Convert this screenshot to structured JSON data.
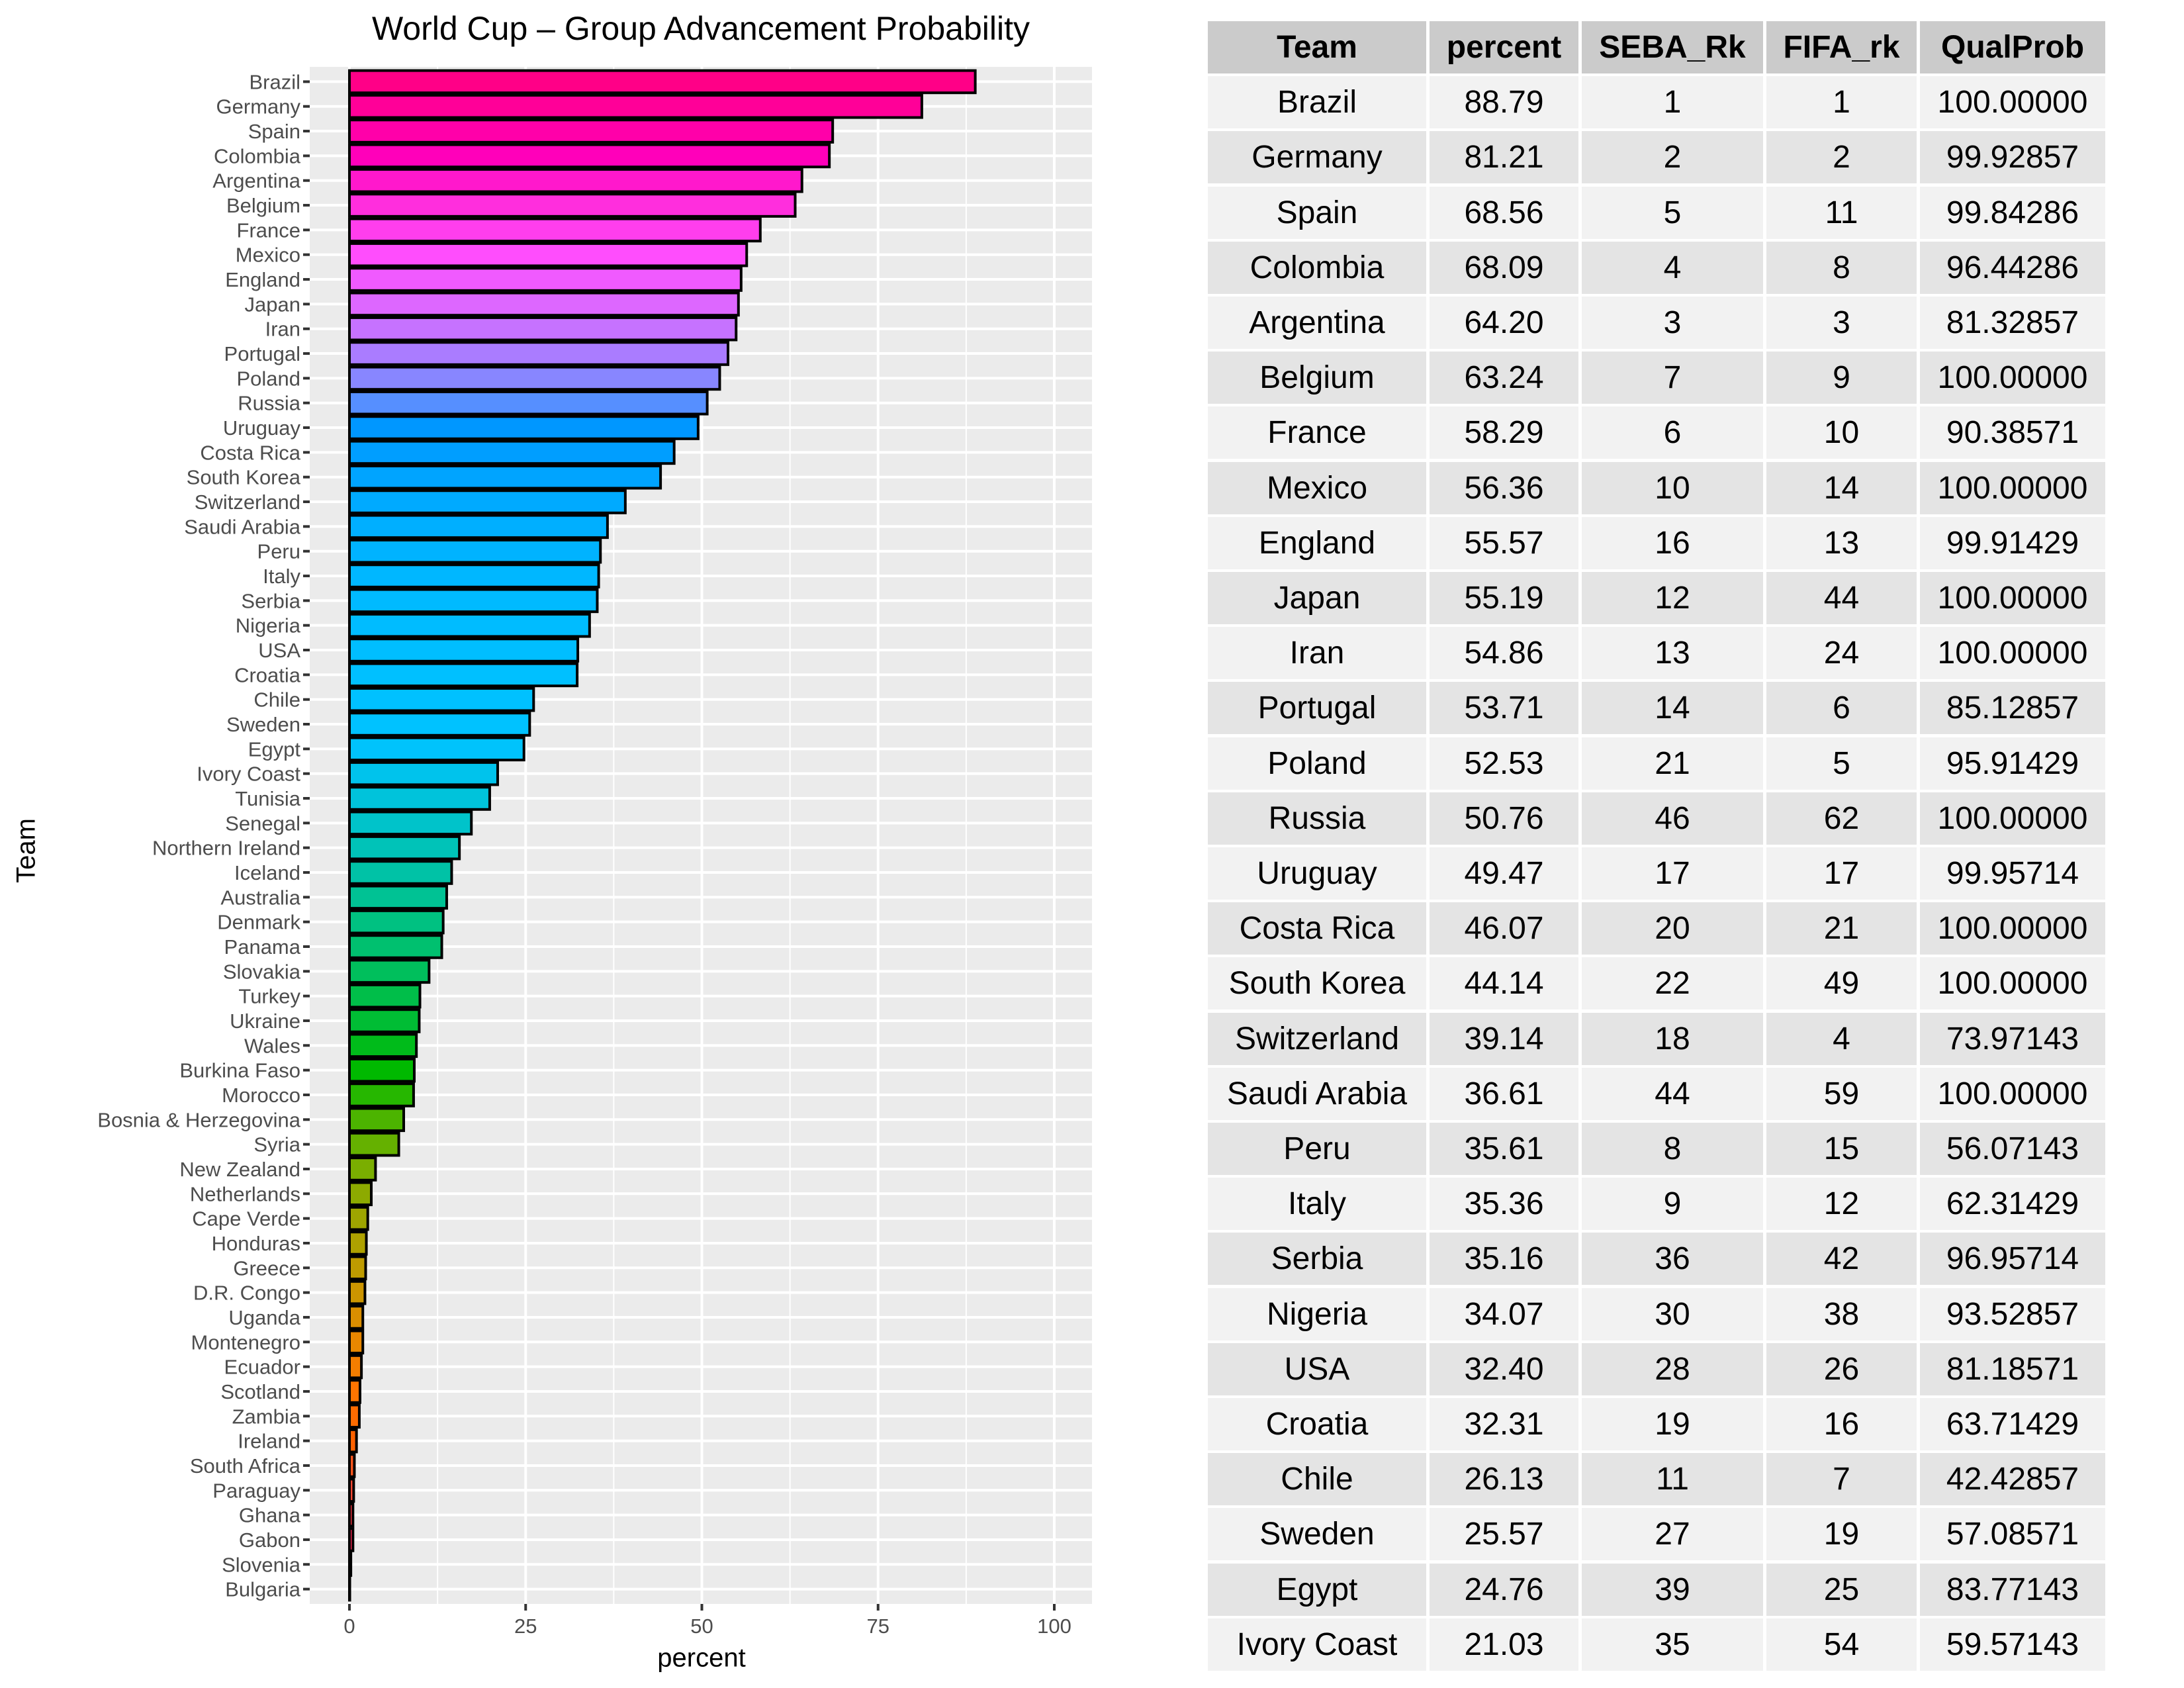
{
  "chart_data": {
    "type": "bar",
    "orientation": "horizontal",
    "title": "World Cup – Group Advancement Probability",
    "xlabel": "percent",
    "ylabel": "Team",
    "xlim": [
      0,
      100
    ],
    "xticks": [
      0,
      25,
      50,
      75,
      100
    ],
    "grid": true,
    "legend": "none",
    "categories": [
      "Brazil",
      "Germany",
      "Spain",
      "Colombia",
      "Argentina",
      "Belgium",
      "France",
      "Mexico",
      "England",
      "Japan",
      "Iran",
      "Portugal",
      "Poland",
      "Russia",
      "Uruguay",
      "Costa Rica",
      "South Korea",
      "Switzerland",
      "Saudi Arabia",
      "Peru",
      "Italy",
      "Serbia",
      "Nigeria",
      "USA",
      "Croatia",
      "Chile",
      "Sweden",
      "Egypt",
      "Ivory Coast",
      "Tunisia",
      "Senegal",
      "Northern Ireland",
      "Iceland",
      "Australia",
      "Denmark",
      "Panama",
      "Slovakia",
      "Turkey",
      "Ukraine",
      "Wales",
      "Burkina Faso",
      "Morocco",
      "Bosnia & Herzegovina",
      "Syria",
      "New Zealand",
      "Netherlands",
      "Cape Verde",
      "Honduras",
      "Greece",
      "D.R. Congo",
      "Uganda",
      "Montenegro",
      "Ecuador",
      "Scotland",
      "Zambia",
      "Ireland",
      "South Africa",
      "Paraguay",
      "Ghana",
      "Gabon",
      "Slovenia",
      "Bulgaria"
    ],
    "values": [
      88.79,
      81.21,
      68.56,
      68.09,
      64.2,
      63.24,
      58.29,
      56.36,
      55.57,
      55.19,
      54.86,
      53.71,
      52.53,
      50.76,
      49.47,
      46.07,
      44.14,
      39.14,
      36.61,
      35.61,
      35.36,
      35.16,
      34.07,
      32.4,
      32.31,
      26.13,
      25.57,
      24.76,
      21.03,
      19.9,
      17.3,
      15.6,
      14.5,
      13.8,
      13.3,
      13.1,
      11.3,
      10.0,
      9.9,
      9.5,
      9.2,
      9.1,
      7.7,
      7.0,
      3.7,
      3.1,
      2.6,
      2.4,
      2.3,
      2.2,
      1.9,
      1.9,
      1.7,
      1.5,
      1.4,
      1.0,
      0.7,
      0.6,
      0.5,
      0.5,
      0.2,
      0.05
    ]
  },
  "table": {
    "headers": [
      "Team",
      "percent",
      "SEBA_Rk",
      "FIFA_rk",
      "QualProb"
    ],
    "rows": [
      [
        "Brazil",
        "88.79",
        "1",
        "1",
        "100.00000"
      ],
      [
        "Germany",
        "81.21",
        "2",
        "2",
        "99.92857"
      ],
      [
        "Spain",
        "68.56",
        "5",
        "11",
        "99.84286"
      ],
      [
        "Colombia",
        "68.09",
        "4",
        "8",
        "96.44286"
      ],
      [
        "Argentina",
        "64.20",
        "3",
        "3",
        "81.32857"
      ],
      [
        "Belgium",
        "63.24",
        "7",
        "9",
        "100.00000"
      ],
      [
        "France",
        "58.29",
        "6",
        "10",
        "90.38571"
      ],
      [
        "Mexico",
        "56.36",
        "10",
        "14",
        "100.00000"
      ],
      [
        "England",
        "55.57",
        "16",
        "13",
        "99.91429"
      ],
      [
        "Japan",
        "55.19",
        "12",
        "44",
        "100.00000"
      ],
      [
        "Iran",
        "54.86",
        "13",
        "24",
        "100.00000"
      ],
      [
        "Portugal",
        "53.71",
        "14",
        "6",
        "85.12857"
      ],
      [
        "Poland",
        "52.53",
        "21",
        "5",
        "95.91429"
      ],
      [
        "Russia",
        "50.76",
        "46",
        "62",
        "100.00000"
      ],
      [
        "Uruguay",
        "49.47",
        "17",
        "17",
        "99.95714"
      ],
      [
        "Costa Rica",
        "46.07",
        "20",
        "21",
        "100.00000"
      ],
      [
        "South Korea",
        "44.14",
        "22",
        "49",
        "100.00000"
      ],
      [
        "Switzerland",
        "39.14",
        "18",
        "4",
        "73.97143"
      ],
      [
        "Saudi Arabia",
        "36.61",
        "44",
        "59",
        "100.00000"
      ],
      [
        "Peru",
        "35.61",
        "8",
        "15",
        "56.07143"
      ],
      [
        "Italy",
        "35.36",
        "9",
        "12",
        "62.31429"
      ],
      [
        "Serbia",
        "35.16",
        "36",
        "42",
        "96.95714"
      ],
      [
        "Nigeria",
        "34.07",
        "30",
        "38",
        "93.52857"
      ],
      [
        "USA",
        "32.40",
        "28",
        "26",
        "81.18571"
      ],
      [
        "Croatia",
        "32.31",
        "19",
        "16",
        "63.71429"
      ],
      [
        "Chile",
        "26.13",
        "11",
        "7",
        "42.42857"
      ],
      [
        "Sweden",
        "25.57",
        "27",
        "19",
        "57.08571"
      ],
      [
        "Egypt",
        "24.76",
        "39",
        "25",
        "83.77143"
      ],
      [
        "Ivory Coast",
        "21.03",
        "35",
        "54",
        "59.57143"
      ]
    ]
  },
  "colors": {
    "panel": "#ebebeb",
    "grid": "#ffffff",
    "header": "#cbcbcb",
    "row_light": "#f2f2f2",
    "row_dark": "#e4e4e4"
  }
}
